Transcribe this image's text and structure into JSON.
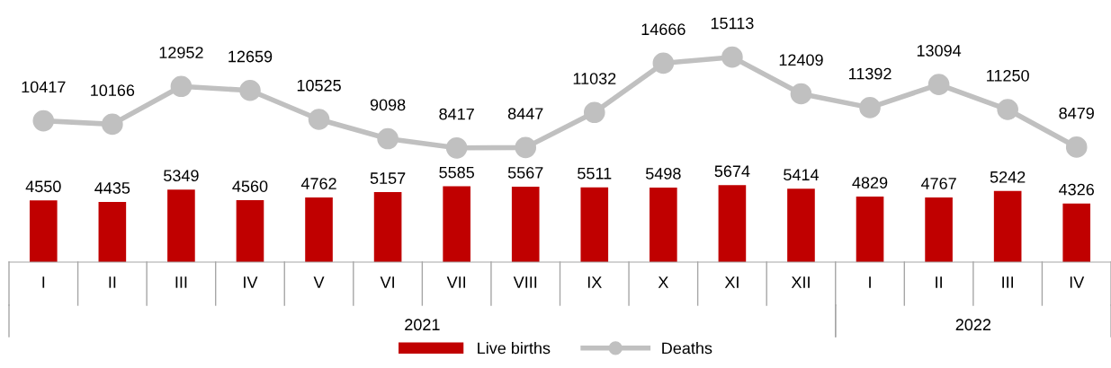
{
  "chart_data": {
    "type": "bar",
    "categories": [
      "I",
      "II",
      "III",
      "IV",
      "V",
      "VI",
      "VII",
      "VIII",
      "IX",
      "X",
      "XI",
      "XII",
      "I",
      "II",
      "III",
      "IV"
    ],
    "series": [
      {
        "name": "Live births",
        "color": "#c00000",
        "values": [
          4550,
          4435,
          5349,
          4560,
          4762,
          5157,
          5585,
          5567,
          5511,
          5498,
          5674,
          5414,
          4829,
          4767,
          5242,
          4326
        ]
      },
      {
        "name": "Deaths",
        "type": "line",
        "color": "#c0c0c0",
        "values": [
          10417,
          10166,
          12952,
          12659,
          10525,
          9098,
          8417,
          8447,
          11032,
          14666,
          15113,
          12409,
          11392,
          13094,
          11250,
          8479
        ]
      }
    ],
    "annotations": [
      "2021",
      "2022"
    ],
    "data_labels": true,
    "marker": "circle",
    "line_style": "solid",
    "legend": "bottom",
    "tick_labels": "x"
  }
}
